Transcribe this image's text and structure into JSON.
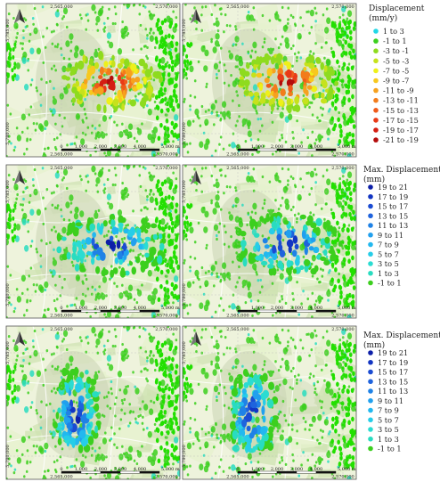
{
  "colors": {
    "bg_map": "#eef3dc",
    "water": "#e6f1cd",
    "field": "#cfe3b3",
    "urban": "#cbd4b4",
    "ps_green": "#3ccf1e",
    "ps_bright_green": "#22e000",
    "north_arrow": "#333333"
  },
  "maps": [
    {
      "id": "r1c1",
      "mode": "rate"
    },
    {
      "id": "r1c2",
      "mode": "rate"
    },
    {
      "id": "r2c1",
      "mode": "max_central"
    },
    {
      "id": "r2c2",
      "mode": "max_central"
    },
    {
      "id": "r3c1",
      "mode": "max_west"
    },
    {
      "id": "r3c2",
      "mode": "max_west"
    }
  ],
  "coordinates": {
    "top_ticks": [
      "2,565,000",
      "2,570,000"
    ],
    "bottom_ticks": [
      "2,565,000",
      "2,570,000"
    ],
    "left_ticks": [
      "5,785,000",
      "5,780,000"
    ],
    "scale_labels": [
      "0",
      "1,000",
      "2,000",
      "3,000",
      "4,000",
      "5,000 m"
    ]
  },
  "legends": [
    {
      "title_lines": [
        "Displacement",
        "(mm/y)"
      ],
      "items": [
        {
          "label": "1 to 3",
          "color": "#21d7e6"
        },
        {
          "label": "-1 to 1",
          "color": "#3ccf1e"
        },
        {
          "label": "-3 to -1",
          "color": "#8edb1f"
        },
        {
          "label": "-5 to -3",
          "color": "#c6e21c"
        },
        {
          "label": "-7 to -5",
          "color": "#eef01a"
        },
        {
          "label": "-9 to -7",
          "color": "#f7c81e"
        },
        {
          "label": "-11 to -9",
          "color": "#f6a11e"
        },
        {
          "label": "-13 to -11",
          "color": "#f27c1c"
        },
        {
          "label": "-15 to -13",
          "color": "#ef5a1a"
        },
        {
          "label": "-17 to -15",
          "color": "#e83a17"
        },
        {
          "label": "-19 to -17",
          "color": "#d41e12"
        },
        {
          "label": "-21 to -19",
          "color": "#b30b0b"
        }
      ]
    },
    {
      "title_lines": [
        "Max. Displacement",
        "(mm)"
      ],
      "items": [
        {
          "label": "19 to 21",
          "color": "#0d1fa8"
        },
        {
          "label": "17 to 19",
          "color": "#1235c2"
        },
        {
          "label": "15 to 17",
          "color": "#1a4bd2"
        },
        {
          "label": "13 to 15",
          "color": "#1f63dd"
        },
        {
          "label": "11 to 13",
          "color": "#1f82e6"
        },
        {
          "label": "9 to 11",
          "color": "#21a0ee"
        },
        {
          "label": "7 to 9",
          "color": "#22b8ef"
        },
        {
          "label": "5 to 7",
          "color": "#26cde8"
        },
        {
          "label": "3 to 5",
          "color": "#2bdcd2"
        },
        {
          "label": "1 to 3",
          "color": "#29dcc0"
        },
        {
          "label": "-1 to 1",
          "color": "#3ccf1e"
        }
      ]
    },
    {
      "title_lines": [
        "Max. Displacement",
        "(mm)"
      ],
      "items": [
        {
          "label": "19 to 21",
          "color": "#0d1fa8"
        },
        {
          "label": "17 to 19",
          "color": "#1235c2"
        },
        {
          "label": "15 to 17",
          "color": "#1a4bd2"
        },
        {
          "label": "13 to 15",
          "color": "#1f63dd"
        },
        {
          "label": "11 to 13",
          "color": "#1f82e6"
        },
        {
          "label": "9 to 11",
          "color": "#21a0ee"
        },
        {
          "label": "7 to 9",
          "color": "#22b8ef"
        },
        {
          "label": "5 to 7",
          "color": "#26cde8"
        },
        {
          "label": "3 to 5",
          "color": "#2bdcd2"
        },
        {
          "label": "1 to 3",
          "color": "#29dcc0"
        },
        {
          "label": "-1 to 1",
          "color": "#3ccf1e"
        }
      ]
    }
  ]
}
